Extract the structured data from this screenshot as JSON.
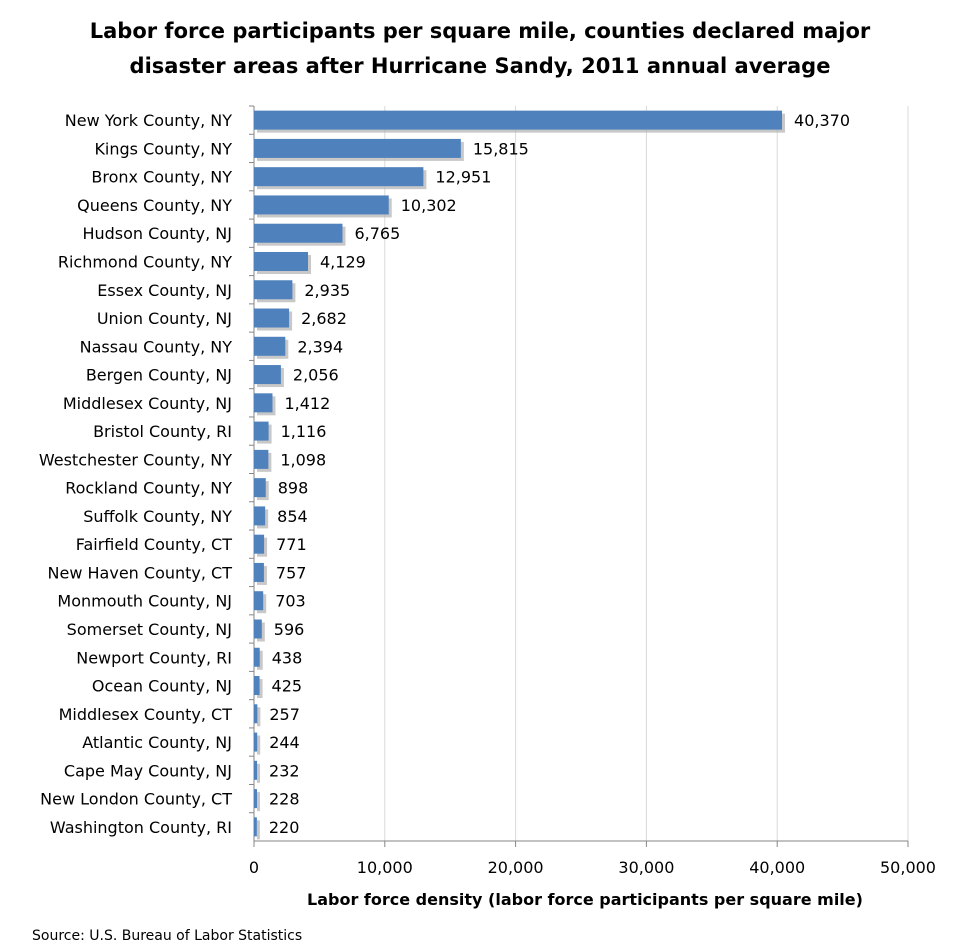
{
  "chart_data": {
    "type": "bar",
    "orientation": "horizontal",
    "title_line1": "Labor force participants per square mile, counties declared major",
    "title_line2": "disaster areas after Hurricane Sandy, 2011 annual average",
    "xlabel": "Labor force density (labor force participants per square mile)",
    "ylabel": "",
    "xlim": [
      0,
      50000
    ],
    "ticks": [
      "0",
      "10,000",
      "20,000",
      "30,000",
      "40,000",
      "50,000"
    ],
    "grid": true,
    "bar_color": "#4f81bd",
    "categories": [
      "New York County, NY",
      "Kings County, NY",
      "Bronx County, NY",
      "Queens County, NY",
      "Hudson County, NJ",
      "Richmond County, NY",
      "Essex County, NJ",
      "Union County, NJ",
      "Nassau County, NY",
      "Bergen County, NJ",
      "Middlesex County, NJ",
      "Bristol County, RI",
      "Westchester County, NY",
      "Rockland County, NY",
      "Suffolk County, NY",
      "Fairfield County, CT",
      "New Haven County, CT",
      "Monmouth County, NJ",
      "Somerset County, NJ",
      "Newport County, RI",
      "Ocean County, NJ",
      "Middlesex County, CT",
      "Atlantic County, NJ",
      "Cape May County, NJ",
      "New London County, CT",
      "Washington County, RI"
    ],
    "values": [
      40370,
      15815,
      12951,
      10302,
      6765,
      4129,
      2935,
      2682,
      2394,
      2056,
      1412,
      1116,
      1098,
      898,
      854,
      771,
      757,
      703,
      596,
      438,
      425,
      257,
      244,
      232,
      228,
      220
    ],
    "value_labels": [
      "40,370",
      "15,815",
      "12,951",
      "10,302",
      "6,765",
      "4,129",
      "2,935",
      "2,682",
      "2,394",
      "2,056",
      "1,412",
      "1,116",
      "1,098",
      "898",
      "854",
      "771",
      "757",
      "703",
      "596",
      "438",
      "425",
      "257",
      "244",
      "232",
      "228",
      "220"
    ]
  },
  "source": "Source: U.S. Bureau of Labor Statistics"
}
